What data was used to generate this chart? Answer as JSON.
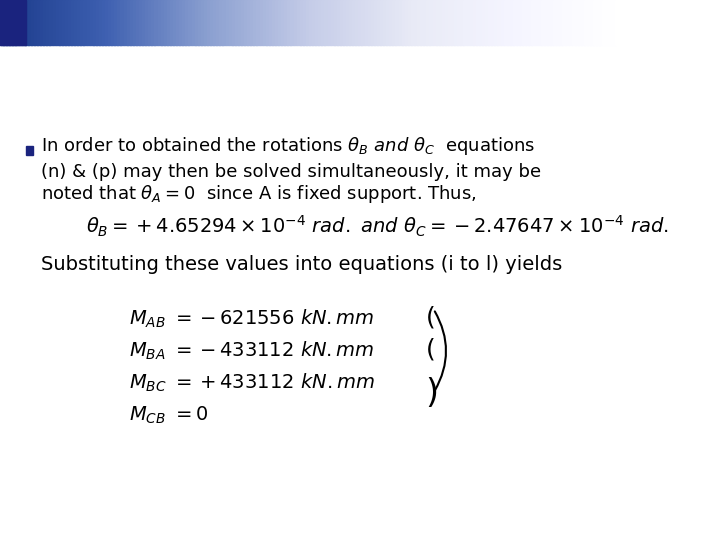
{
  "background_color": "#ffffff",
  "header_gradient_colors": [
    "#1a237e",
    "#9fa8da",
    "#e8eaf6",
    "#ffffff"
  ],
  "header_box_color": "#1a237e",
  "bullet_color": "#1a237e",
  "text_color": "#000000",
  "title_bar_height": 0.09,
  "bullet_text_line1": "In order to obtained the rotations ",
  "bullet_math_1": "$\\theta_B$ $and$ $\\theta_C$",
  "bullet_text_line1b": " equations",
  "bullet_text_line2": "(n) & (p) may then be solved simultaneously, it may be",
  "bullet_text_line3": "noted that ",
  "bullet_math_2": "$\\theta_A = 0$",
  "bullet_text_line3b": "  since A is fixed support. Thus,",
  "equation1": "$\\theta_B = +4.65294 \\times 10^{-4}\\ rad.\\ and\\ \\theta_C = -2.47647 \\times 10^{-4}\\ rad.$",
  "sub_text": "Substituting these values into equations (i to l) yields",
  "eq_M_AB": "$M_{AB} = -621556\\ kN.mm$",
  "eq_M_BA": "$M_{BA} = -433112\\ kN.mm$",
  "eq_M_BC": "$M_{BC} = +433112\\ kN.mm$",
  "eq_M_CB": "$M_{CB} = 0$",
  "font_size_bullet": 13,
  "font_size_eq": 13,
  "font_size_sub": 14,
  "font_size_moment": 14
}
